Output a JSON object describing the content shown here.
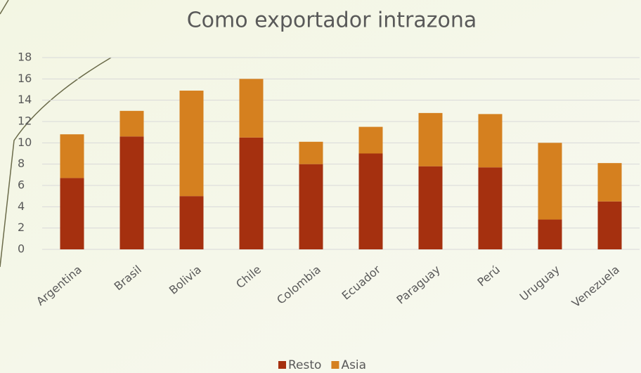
{
  "chart_data": {
    "type": "bar",
    "stacked": true,
    "title": "Como exportador intrazona",
    "categories": [
      "Argentina",
      "Brasil",
      "Bolivia",
      "Chile",
      "Colombia",
      "Ecuador",
      "Paraguay",
      "Perú",
      "Uruguay",
      "Venezuela"
    ],
    "series": [
      {
        "name": "Resto",
        "color": "#a5300f",
        "values": [
          6.7,
          10.6,
          5.0,
          10.5,
          8.0,
          9.0,
          7.8,
          7.7,
          2.8,
          4.5
        ]
      },
      {
        "name": "Asia",
        "color": "#d5801f",
        "values": [
          4.1,
          2.4,
          9.9,
          5.5,
          2.1,
          2.5,
          5.0,
          5.0,
          7.2,
          3.6
        ]
      }
    ],
    "ylim": [
      0,
      18
    ],
    "yticks": [
      0,
      2,
      4,
      6,
      8,
      10,
      12,
      14,
      16,
      18
    ],
    "grid": true,
    "legend": "bottom"
  }
}
